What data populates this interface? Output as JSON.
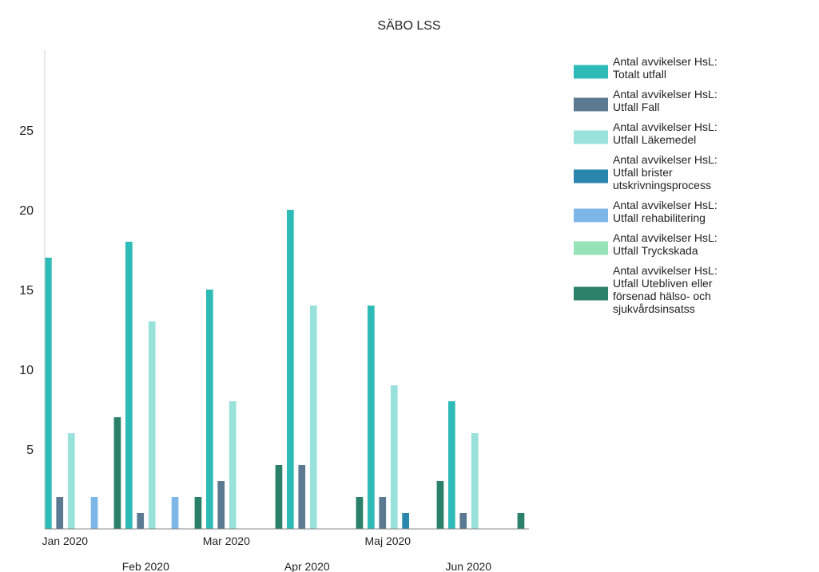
{
  "chart_data": {
    "type": "bar",
    "title": "SÄBO LSS",
    "xlabel": "",
    "ylabel": "",
    "ylim": [
      0,
      30
    ],
    "yticks": [
      5,
      10,
      15,
      20,
      25
    ],
    "grid": false,
    "legend": "right",
    "categories": [
      "Jan 2020",
      "Feb 2020",
      "Mar 2020",
      "Apr 2020",
      "Maj 2020",
      "Jun 2020"
    ],
    "series": [
      {
        "name": "Antal avvikelser HsL: Totalt utfall",
        "color": "#2ebbb7",
        "values": [
          17,
          18,
          15,
          20,
          14,
          8
        ]
      },
      {
        "name": "Antal avvikelser HsL: Utfall Fall",
        "color": "#5b7a92",
        "values": [
          2,
          1,
          3,
          4,
          2,
          1
        ]
      },
      {
        "name": "Antal avvikelser HsL: Utfall Läkemedel",
        "color": "#99e2dc",
        "values": [
          6,
          13,
          8,
          14,
          9,
          6
        ]
      },
      {
        "name": "Antal avvikelser HsL: Utfall brister utskrivningsprocess",
        "color": "#2b86ad",
        "values": [
          0,
          0,
          0,
          0,
          1,
          0
        ]
      },
      {
        "name": "Antal avvikelser HsL: Utfall rehabilitering",
        "color": "#7db7e8",
        "values": [
          2,
          2,
          0,
          0,
          0,
          0
        ]
      },
      {
        "name": "Antal avvikelser HsL: Utfall Tryckskada",
        "color": "#96e3b9",
        "values": [
          0,
          0,
          0,
          0,
          0,
          0
        ]
      },
      {
        "name": "Antal avvikelser HsL: Utfall Utebliven eller  försenad hälso- och sjukvårdsinsatss",
        "color": "#2a8068",
        "values": [
          7,
          2,
          4,
          2,
          3,
          1
        ]
      }
    ]
  }
}
